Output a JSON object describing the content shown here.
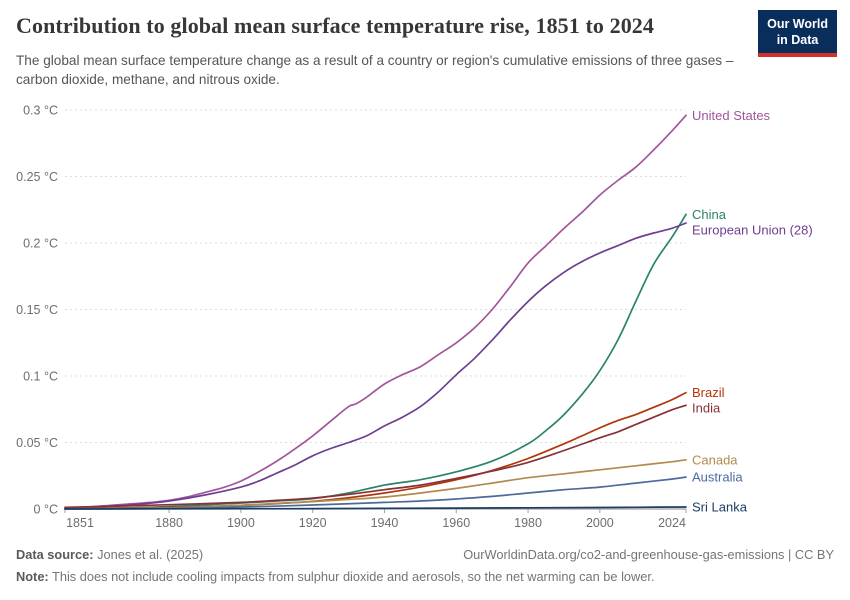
{
  "header": {
    "title": "Contribution to global mean surface temperature rise, 1851 to 2024",
    "subtitle": "The global mean surface temperature change as a result of a country or region's cumulative emissions of three gases – carbon dioxide, methane, and nitrous oxide.",
    "logo": {
      "line1": "Our World",
      "line2": "in Data",
      "background_color": "#0A2E5C",
      "stripe_color": "#D2302C"
    }
  },
  "chart_data": {
    "type": "line",
    "title": "Contribution to global mean surface temperature rise, 1851 to 2024",
    "xlabel": "",
    "ylabel": "",
    "unit": "°C",
    "xlim": [
      1851,
      2024
    ],
    "ylim": [
      0,
      0.3
    ],
    "grid": "horizontal dashed",
    "legend_position": "right end-of-line labels",
    "x_ticks": [
      1851,
      1880,
      1900,
      1920,
      1940,
      1960,
      1980,
      2000,
      2024
    ],
    "x_tick_labels": [
      "1851",
      "1880",
      "1900",
      "1920",
      "1940",
      "1960",
      "1980",
      "2000",
      "2024"
    ],
    "y_ticks": [
      {
        "value": 0,
        "label": "0 °C"
      },
      {
        "value": 0.05,
        "label": "0.05 °C"
      },
      {
        "value": 0.1,
        "label": "0.1 °C"
      },
      {
        "value": 0.15,
        "label": "0.15 °C"
      },
      {
        "value": 0.2,
        "label": "0.2 °C"
      },
      {
        "value": 0.25,
        "label": "0.25 °C"
      },
      {
        "value": 0.3,
        "label": "0.3 °C"
      }
    ],
    "series": [
      {
        "name": "United States",
        "color": "#A2559C",
        "points": [
          [
            1851,
            0.0005
          ],
          [
            1855,
            0.001
          ],
          [
            1860,
            0.002
          ],
          [
            1865,
            0.003
          ],
          [
            1870,
            0.004
          ],
          [
            1875,
            0.005
          ],
          [
            1880,
            0.0065
          ],
          [
            1885,
            0.009
          ],
          [
            1890,
            0.0125
          ],
          [
            1895,
            0.016
          ],
          [
            1900,
            0.021
          ],
          [
            1905,
            0.028
          ],
          [
            1910,
            0.036
          ],
          [
            1915,
            0.045
          ],
          [
            1920,
            0.055
          ],
          [
            1925,
            0.066
          ],
          [
            1930,
            0.077
          ],
          [
            1932,
            0.079
          ],
          [
            1935,
            0.084
          ],
          [
            1940,
            0.094
          ],
          [
            1945,
            0.101
          ],
          [
            1950,
            0.107
          ],
          [
            1955,
            0.116
          ],
          [
            1960,
            0.125
          ],
          [
            1965,
            0.136
          ],
          [
            1970,
            0.15
          ],
          [
            1975,
            0.167
          ],
          [
            1980,
            0.185
          ],
          [
            1985,
            0.198
          ],
          [
            1990,
            0.211
          ],
          [
            1995,
            0.223
          ],
          [
            2000,
            0.236
          ],
          [
            2005,
            0.247
          ],
          [
            2010,
            0.257
          ],
          [
            2015,
            0.27
          ],
          [
            2020,
            0.284
          ],
          [
            2024,
            0.296
          ]
        ]
      },
      {
        "name": "China",
        "color": "#2C8465",
        "points": [
          [
            1851,
            0.0002
          ],
          [
            1870,
            0.001
          ],
          [
            1880,
            0.0018
          ],
          [
            1900,
            0.0045
          ],
          [
            1910,
            0.006
          ],
          [
            1920,
            0.0078
          ],
          [
            1930,
            0.012
          ],
          [
            1940,
            0.018
          ],
          [
            1950,
            0.022
          ],
          [
            1960,
            0.028
          ],
          [
            1970,
            0.036
          ],
          [
            1980,
            0.049
          ],
          [
            1985,
            0.059
          ],
          [
            1990,
            0.071
          ],
          [
            1995,
            0.086
          ],
          [
            2000,
            0.104
          ],
          [
            2005,
            0.127
          ],
          [
            2010,
            0.156
          ],
          [
            2015,
            0.184
          ],
          [
            2020,
            0.204
          ],
          [
            2024,
            0.2215
          ]
        ]
      },
      {
        "name": "European Union (28)",
        "color": "#6D3E91",
        "points": [
          [
            1851,
            0.0004
          ],
          [
            1860,
            0.0015
          ],
          [
            1870,
            0.0032
          ],
          [
            1880,
            0.006
          ],
          [
            1890,
            0.0105
          ],
          [
            1900,
            0.0165
          ],
          [
            1905,
            0.021
          ],
          [
            1910,
            0.027
          ],
          [
            1915,
            0.033
          ],
          [
            1920,
            0.04
          ],
          [
            1925,
            0.0455
          ],
          [
            1930,
            0.05
          ],
          [
            1935,
            0.055
          ],
          [
            1940,
            0.0625
          ],
          [
            1945,
            0.069
          ],
          [
            1950,
            0.077
          ],
          [
            1955,
            0.088
          ],
          [
            1960,
            0.101
          ],
          [
            1965,
            0.113
          ],
          [
            1970,
            0.127
          ],
          [
            1975,
            0.142
          ],
          [
            1980,
            0.156
          ],
          [
            1985,
            0.168
          ],
          [
            1990,
            0.178
          ],
          [
            1995,
            0.186
          ],
          [
            2000,
            0.1925
          ],
          [
            2005,
            0.198
          ],
          [
            2010,
            0.2035
          ],
          [
            2015,
            0.2075
          ],
          [
            2020,
            0.211
          ],
          [
            2024,
            0.215
          ]
        ]
      },
      {
        "name": "Brazil",
        "color": "#B13507",
        "points": [
          [
            1851,
            0.0002
          ],
          [
            1880,
            0.0012
          ],
          [
            1900,
            0.0028
          ],
          [
            1910,
            0.004
          ],
          [
            1920,
            0.0058
          ],
          [
            1930,
            0.0085
          ],
          [
            1940,
            0.012
          ],
          [
            1950,
            0.0165
          ],
          [
            1960,
            0.022
          ],
          [
            1970,
            0.029
          ],
          [
            1980,
            0.038
          ],
          [
            1990,
            0.049
          ],
          [
            1995,
            0.055
          ],
          [
            2000,
            0.061
          ],
          [
            2005,
            0.0665
          ],
          [
            2010,
            0.071
          ],
          [
            2015,
            0.0765
          ],
          [
            2020,
            0.082
          ],
          [
            2024,
            0.0875
          ]
        ]
      },
      {
        "name": "India",
        "color": "#883039",
        "points": [
          [
            1851,
            0.0012
          ],
          [
            1860,
            0.0018
          ],
          [
            1880,
            0.0032
          ],
          [
            1900,
            0.005
          ],
          [
            1910,
            0.0065
          ],
          [
            1920,
            0.0082
          ],
          [
            1930,
            0.011
          ],
          [
            1940,
            0.0145
          ],
          [
            1950,
            0.018
          ],
          [
            1960,
            0.023
          ],
          [
            1970,
            0.0285
          ],
          [
            1980,
            0.035
          ],
          [
            1990,
            0.044
          ],
          [
            2000,
            0.0535
          ],
          [
            2005,
            0.058
          ],
          [
            2010,
            0.0635
          ],
          [
            2015,
            0.069
          ],
          [
            2020,
            0.0745
          ],
          [
            2024,
            0.078
          ]
        ]
      },
      {
        "name": "Canada",
        "color": "#B18A4E",
        "points": [
          [
            1851,
            0.0001
          ],
          [
            1880,
            0.0009
          ],
          [
            1900,
            0.0028
          ],
          [
            1910,
            0.0042
          ],
          [
            1920,
            0.0056
          ],
          [
            1930,
            0.0072
          ],
          [
            1940,
            0.009
          ],
          [
            1950,
            0.012
          ],
          [
            1960,
            0.0155
          ],
          [
            1970,
            0.0195
          ],
          [
            1980,
            0.0235
          ],
          [
            1990,
            0.0265
          ],
          [
            2000,
            0.0295
          ],
          [
            2010,
            0.0325
          ],
          [
            2020,
            0.0355
          ],
          [
            2024,
            0.037
          ]
        ]
      },
      {
        "name": "Australia",
        "color": "#4C6A9C",
        "points": [
          [
            1851,
            5e-05
          ],
          [
            1880,
            0.0005
          ],
          [
            1900,
            0.0015
          ],
          [
            1920,
            0.003
          ],
          [
            1940,
            0.005
          ],
          [
            1950,
            0.006
          ],
          [
            1960,
            0.0075
          ],
          [
            1970,
            0.0095
          ],
          [
            1980,
            0.012
          ],
          [
            1990,
            0.0145
          ],
          [
            2000,
            0.0165
          ],
          [
            2010,
            0.0195
          ],
          [
            2020,
            0.0225
          ],
          [
            2024,
            0.024
          ]
        ]
      },
      {
        "name": "Sri Lanka",
        "color": "#1D3D63",
        "points": [
          [
            1851,
            2e-05
          ],
          [
            1900,
            0.0002
          ],
          [
            1920,
            0.0003
          ],
          [
            1940,
            0.0005
          ],
          [
            1960,
            0.0007
          ],
          [
            1980,
            0.0009
          ],
          [
            2000,
            0.0011
          ],
          [
            2010,
            0.0013
          ],
          [
            2024,
            0.0015
          ]
        ]
      }
    ]
  },
  "footer": {
    "source_label": "Data source:",
    "source_value": " Jones et al. (2025)",
    "rights": "OurWorldinData.org/co2-and-greenhouse-gas-emissions | CC BY",
    "note_label": "Note:",
    "note_value": " This does not include cooling impacts from sulphur dioxide and aerosols, so the net warming can be lower."
  }
}
